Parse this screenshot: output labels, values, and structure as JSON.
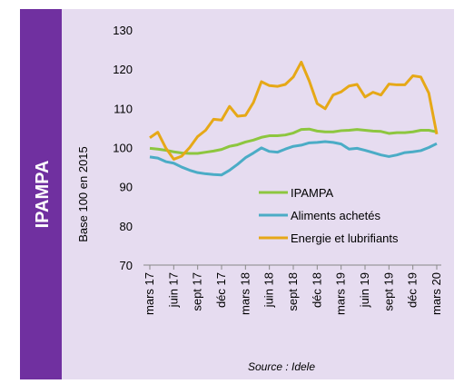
{
  "chart_data": {
    "type": "line",
    "panel_label": "IPAMPA",
    "y_label": "Base 100 en 2015",
    "source": "Source : Idele",
    "categories": [
      "mars 17",
      null,
      null,
      "juin 17",
      null,
      null,
      "sept 17",
      null,
      null,
      "déc 17",
      null,
      null,
      "mars 18",
      null,
      null,
      "juin 18",
      null,
      null,
      "sept 18",
      null,
      null,
      "déc 18",
      null,
      null,
      "mars 19",
      null,
      null,
      "juin 19",
      null,
      null,
      "sept 19",
      null,
      null,
      "déc 19",
      null,
      null,
      "mars 20"
    ],
    "series": [
      {
        "name": "IPAMPA",
        "color": "#8dc63f",
        "values": [
          99.8,
          99.6,
          99.3,
          98.9,
          98.6,
          98.5,
          98.5,
          98.8,
          99.1,
          99.5,
          100.3,
          100.7,
          101.4,
          101.9,
          102.6,
          103.0,
          103.0,
          103.2,
          103.7,
          104.6,
          104.7,
          104.2,
          104.0,
          104.0,
          104.3,
          104.4,
          104.6,
          104.4,
          104.2,
          104.1,
          103.6,
          103.8,
          103.8,
          104.0,
          104.4,
          104.4,
          104.0
        ]
      },
      {
        "name": "Aliments achetés",
        "color": "#4bacc6",
        "values": [
          97.6,
          97.3,
          96.4,
          96.0,
          95.0,
          94.2,
          93.6,
          93.3,
          93.1,
          93.0,
          94.2,
          95.7,
          97.4,
          98.6,
          99.9,
          99.0,
          98.8,
          99.6,
          100.3,
          100.6,
          101.2,
          101.3,
          101.5,
          101.3,
          100.9,
          99.6,
          99.8,
          99.3,
          98.7,
          98.1,
          97.7,
          98.1,
          98.7,
          98.9,
          99.2,
          100.0,
          101.0
        ]
      },
      {
        "name": "Energie et lubrifiants",
        "color": "#e6a817",
        "values": [
          102.5,
          103.9,
          99.9,
          97.0,
          97.8,
          100.0,
          102.8,
          104.4,
          107.2,
          107.0,
          110.5,
          108.0,
          108.2,
          111.5,
          116.8,
          115.8,
          115.6,
          116.1,
          118.0,
          121.8,
          117.0,
          111.2,
          109.9,
          113.4,
          114.2,
          115.7,
          116.1,
          112.9,
          114.1,
          113.4,
          116.2,
          116.0,
          116.0,
          118.3,
          118.0,
          113.9,
          103.4
        ]
      }
    ],
    "ylim": [
      70,
      130
    ],
    "yticks": [
      70,
      80,
      90,
      100,
      110,
      120,
      130
    ],
    "grid": false,
    "legend": "right"
  }
}
